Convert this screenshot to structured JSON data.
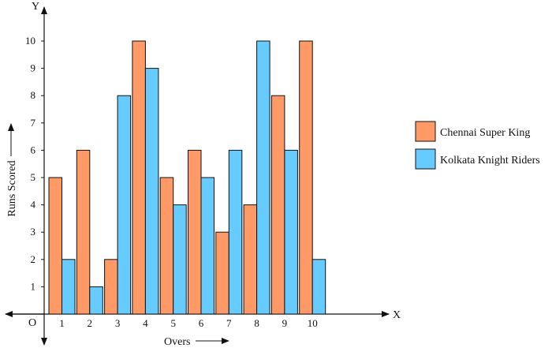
{
  "chart_data": {
    "type": "bar",
    "categories": [
      "1",
      "2",
      "3",
      "4",
      "5",
      "6",
      "7",
      "8",
      "9",
      "10"
    ],
    "series": [
      {
        "name": "Chennai Super King",
        "color": "#FF9966",
        "values": [
          5,
          6,
          2,
          10,
          5,
          6,
          3,
          4,
          8,
          10
        ]
      },
      {
        "name": "Kolkata Knight Riders",
        "color": "#66CCFF",
        "values": [
          2,
          1,
          8,
          9,
          4,
          5,
          6,
          10,
          6,
          2
        ]
      }
    ],
    "xlabel": "Overs",
    "ylabel": "Runs Scored",
    "x_axis_letter": "X",
    "y_axis_letter": "Y",
    "origin_label": "O",
    "ylim": [
      0,
      10
    ],
    "yticks": [
      "1",
      "2",
      "3",
      "4",
      "5",
      "6",
      "7",
      "8",
      "9",
      "10"
    ],
    "grid": false,
    "legend_position": "right"
  }
}
